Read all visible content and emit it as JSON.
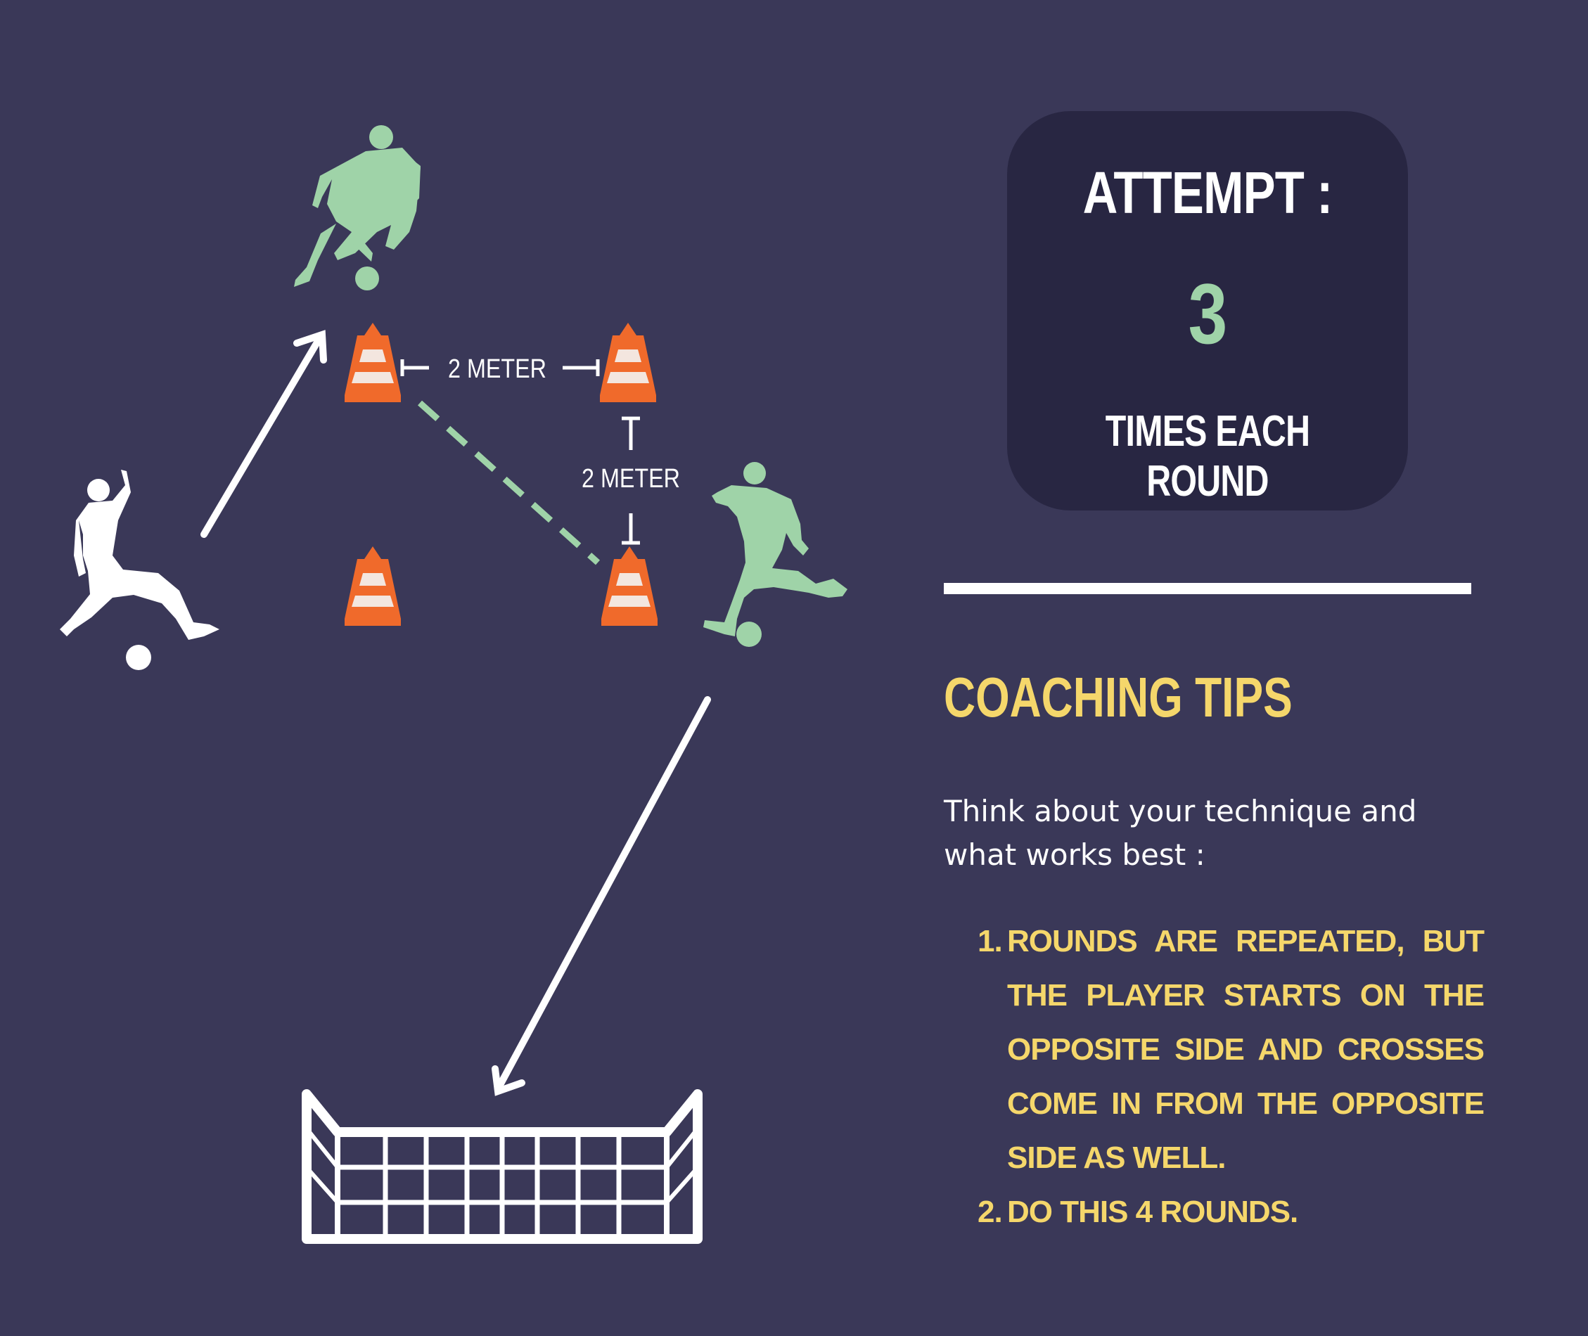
{
  "labels": {
    "distance_horizontal": "2 METER",
    "distance_vertical": "2 METER"
  },
  "attempt": {
    "title": "ATTEMPT :",
    "count": "3",
    "subtitle": "TIMES EACH ROUND"
  },
  "coaching": {
    "title": "COACHING TIPS",
    "intro": "Think about your technique and what works best :",
    "tips": [
      {
        "number": "1.",
        "text": "ROUNDS ARE REPEATED, BUT THE PLAYER STARTS ON THE OPPOSITE SIDE AND CROSSES COME IN FROM THE OPPOSITE SIDE AS WELL."
      },
      {
        "number": "2.",
        "text": "DO THIS 4 ROUNDS."
      }
    ]
  },
  "colors": {
    "background": "#3a3858",
    "card": "#282642",
    "accent_green": "#9fd3a8",
    "accent_yellow": "#f5d76b",
    "cone_orange": "#f06a2b",
    "white": "#ffffff"
  },
  "icons": [
    "player-silhouette-icon",
    "soccer-ball-icon",
    "traffic-cone-icon",
    "arrow-icon",
    "goal-net-icon"
  ]
}
